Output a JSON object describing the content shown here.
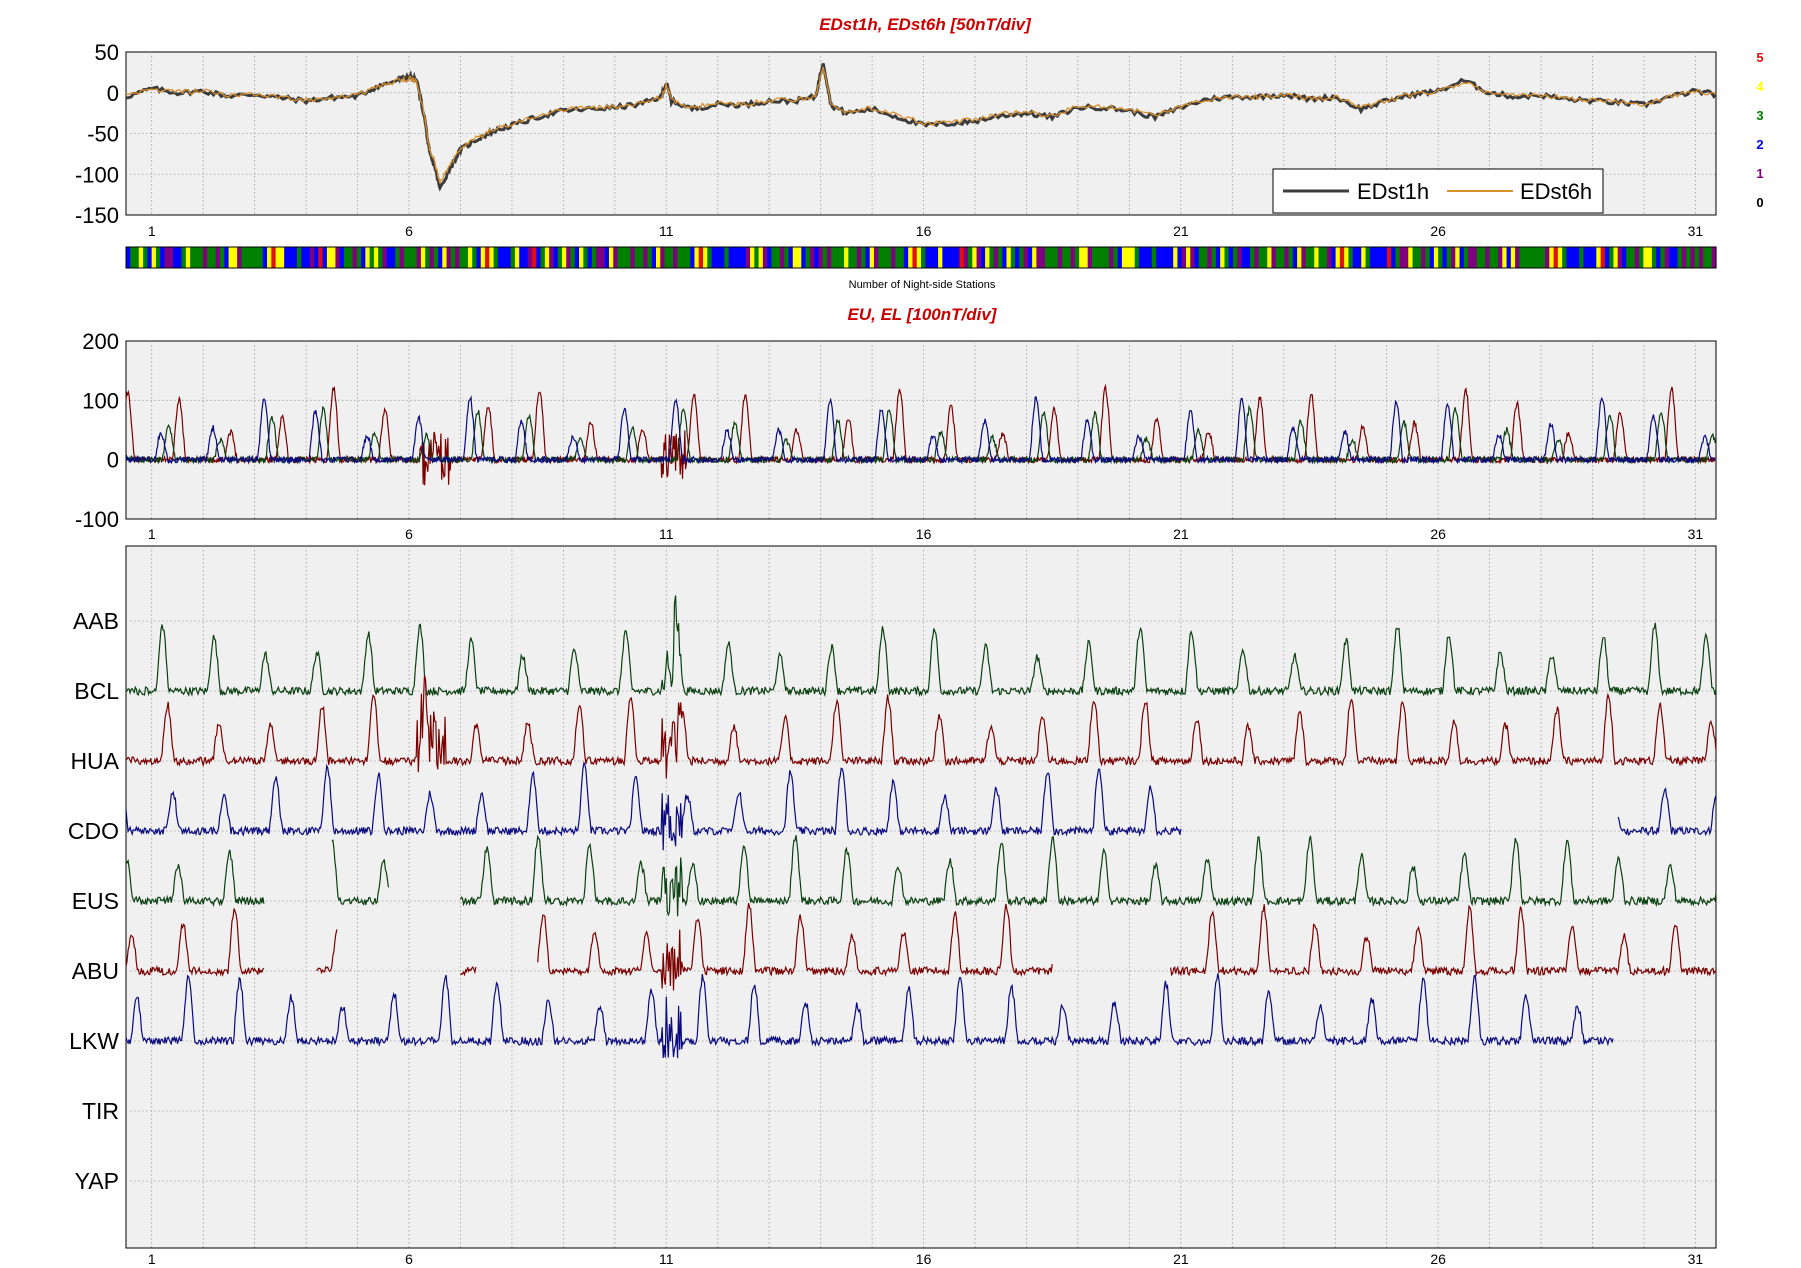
{
  "colors": {
    "panel_bg": "#f0f0f0",
    "grid": "#9a9a9a",
    "title": "#cc0000",
    "edst1h": "#3c3c3c",
    "edst6h": "#d8902e",
    "dark_red": "#7a0000",
    "dark_blue": "#0a0a80",
    "dark_green": "#0a4010"
  },
  "chart_data": [
    {
      "type": "line",
      "title": "EDst1h, EDst6h [50nT/div]",
      "x_ticks": [
        "1",
        "6",
        "11",
        "16",
        "21",
        "26",
        "31"
      ],
      "x_tick_values": [
        1,
        6,
        11,
        16,
        21,
        26,
        31
      ],
      "xlim": [
        0.5,
        31.4
      ],
      "ylim": [
        -150,
        50
      ],
      "y_ticks": [
        "50",
        "0",
        "-50",
        "-100",
        "-150"
      ],
      "y_tick_values": [
        50,
        0,
        -50,
        -100,
        -150
      ],
      "grid": true,
      "legend_placement": "bottom-right",
      "series": [
        {
          "name": "EDst1h",
          "color": "#3c3c3c",
          "points": [
            [
              0.5,
              -5
            ],
            [
              1,
              5
            ],
            [
              1.5,
              0
            ],
            [
              2,
              2
            ],
            [
              2.5,
              -4
            ],
            [
              3,
              -2
            ],
            [
              3.5,
              -6
            ],
            [
              4,
              -10
            ],
            [
              4.5,
              -6
            ],
            [
              5,
              -4
            ],
            [
              5.4,
              8
            ],
            [
              5.8,
              16
            ],
            [
              6,
              20
            ],
            [
              6.15,
              15
            ],
            [
              6.3,
              -30
            ],
            [
              6.4,
              -75
            ],
            [
              6.5,
              -90
            ],
            [
              6.6,
              -118
            ],
            [
              6.8,
              -92
            ],
            [
              7,
              -70
            ],
            [
              7.3,
              -58
            ],
            [
              7.6,
              -48
            ],
            [
              8,
              -40
            ],
            [
              8.5,
              -30
            ],
            [
              9,
              -22
            ],
            [
              9.5,
              -20
            ],
            [
              10,
              -18
            ],
            [
              10.5,
              -14
            ],
            [
              10.9,
              -5
            ],
            [
              11,
              12
            ],
            [
              11.1,
              -10
            ],
            [
              11.5,
              -20
            ],
            [
              12,
              -14
            ],
            [
              12.5,
              -15
            ],
            [
              13,
              -10
            ],
            [
              13.5,
              -10
            ],
            [
              13.9,
              -5
            ],
            [
              14.05,
              38
            ],
            [
              14.2,
              -15
            ],
            [
              14.5,
              -25
            ],
            [
              15,
              -20
            ],
            [
              15.5,
              -30
            ],
            [
              16,
              -40
            ],
            [
              16.5,
              -38
            ],
            [
              17,
              -35
            ],
            [
              17.5,
              -28
            ],
            [
              18,
              -25
            ],
            [
              18.5,
              -30
            ],
            [
              19,
              -18
            ],
            [
              19.5,
              -18
            ],
            [
              20,
              -22
            ],
            [
              20.5,
              -30
            ],
            [
              21,
              -18
            ],
            [
              21.5,
              -8
            ],
            [
              22,
              -5
            ],
            [
              22.5,
              -5
            ],
            [
              23,
              -2
            ],
            [
              23.5,
              -8
            ],
            [
              24,
              -5
            ],
            [
              24.5,
              -20
            ],
            [
              25,
              -10
            ],
            [
              25.5,
              -2
            ],
            [
              26,
              2
            ],
            [
              26.5,
              15
            ],
            [
              27,
              0
            ],
            [
              27.5,
              -5
            ],
            [
              28,
              -3
            ],
            [
              28.5,
              -8
            ],
            [
              29,
              -10
            ],
            [
              29.5,
              -12
            ],
            [
              30,
              -15
            ],
            [
              30.5,
              -5
            ],
            [
              31,
              2
            ],
            [
              31.4,
              -2
            ]
          ]
        },
        {
          "name": "EDst6h",
          "color": "#d8902e",
          "points": [
            [
              0.5,
              -4
            ],
            [
              1,
              4
            ],
            [
              1.5,
              1
            ],
            [
              2,
              2
            ],
            [
              2.5,
              -3
            ],
            [
              3,
              -2
            ],
            [
              3.5,
              -5
            ],
            [
              4,
              -9
            ],
            [
              4.5,
              -6
            ],
            [
              5,
              -3
            ],
            [
              5.4,
              8
            ],
            [
              5.8,
              15
            ],
            [
              6,
              18
            ],
            [
              6.15,
              14
            ],
            [
              6.3,
              -28
            ],
            [
              6.4,
              -70
            ],
            [
              6.5,
              -85
            ],
            [
              6.6,
              -110
            ],
            [
              6.8,
              -88
            ],
            [
              7,
              -68
            ],
            [
              7.3,
              -56
            ],
            [
              7.6,
              -46
            ],
            [
              8,
              -38
            ],
            [
              8.5,
              -29
            ],
            [
              9,
              -21
            ],
            [
              9.5,
              -19
            ],
            [
              10,
              -17
            ],
            [
              10.5,
              -13
            ],
            [
              10.9,
              -5
            ],
            [
              11,
              9
            ],
            [
              11.1,
              -9
            ],
            [
              11.5,
              -18
            ],
            [
              12,
              -13
            ],
            [
              12.5,
              -14
            ],
            [
              13,
              -9
            ],
            [
              13.5,
              -9
            ],
            [
              13.9,
              -4
            ],
            [
              14.05,
              30
            ],
            [
              14.2,
              -13
            ],
            [
              14.5,
              -23
            ],
            [
              15,
              -19
            ],
            [
              15.5,
              -28
            ],
            [
              16,
              -37
            ],
            [
              16.5,
              -36
            ],
            [
              17,
              -33
            ],
            [
              17.5,
              -26
            ],
            [
              18,
              -24
            ],
            [
              18.5,
              -28
            ],
            [
              19,
              -17
            ],
            [
              19.5,
              -17
            ],
            [
              20,
              -21
            ],
            [
              20.5,
              -28
            ],
            [
              21,
              -17
            ],
            [
              21.5,
              -8
            ],
            [
              22,
              -5
            ],
            [
              22.5,
              -5
            ],
            [
              23,
              -2
            ],
            [
              23.5,
              -7
            ],
            [
              24,
              -5
            ],
            [
              24.5,
              -18
            ],
            [
              25,
              -9
            ],
            [
              25.5,
              -2
            ],
            [
              26,
              2
            ],
            [
              26.5,
              13
            ],
            [
              27,
              0
            ],
            [
              27.5,
              -4
            ],
            [
              28,
              -3
            ],
            [
              28.5,
              -7
            ],
            [
              29,
              -9
            ],
            [
              29.5,
              -11
            ],
            [
              30,
              -14
            ],
            [
              30.5,
              -5
            ],
            [
              31,
              2
            ],
            [
              31.4,
              -2
            ]
          ]
        }
      ]
    },
    {
      "type": "heatmap",
      "xlabel": "Number of Night-side Stations",
      "xlim": [
        0.5,
        31.4
      ],
      "color_key": [
        {
          "label": "5",
          "color": "#e01010"
        },
        {
          "label": "4",
          "color": "#ffff00"
        },
        {
          "label": "3",
          "color": "#008000"
        },
        {
          "label": "2",
          "color": "#0000ff"
        },
        {
          "label": "1",
          "color": "#800080"
        },
        {
          "label": "0",
          "color": "#000000"
        }
      ],
      "counts_pattern": [
        2,
        3,
        3,
        4,
        5,
        2,
        2,
        3,
        3,
        1,
        3,
        2,
        4,
        3,
        3,
        2,
        3,
        2,
        3,
        3,
        1,
        1,
        2,
        3,
        3,
        4,
        2,
        3,
        3,
        2,
        2,
        1,
        1,
        2,
        3,
        3,
        2,
        4,
        3,
        2
      ]
    },
    {
      "type": "line",
      "title": "EU, EL   [100nT/div]",
      "x_ticks": [
        "1",
        "6",
        "11",
        "16",
        "21",
        "26",
        "31"
      ],
      "x_tick_values": [
        1,
        6,
        11,
        16,
        21,
        26,
        31
      ],
      "xlim": [
        0.5,
        31.4
      ],
      "ylim": [
        -100,
        200
      ],
      "y_ticks": [
        "200",
        "100",
        "0",
        "-100"
      ],
      "y_tick_values": [
        200,
        100,
        0,
        -100
      ],
      "grid": true,
      "series_style": [
        {
          "color": "#7a0000",
          "amplitude": 110,
          "phase": 0.35
        },
        {
          "color": "#0a4010",
          "amplitude": 80,
          "phase": 0.15
        },
        {
          "color": "#0a0a80",
          "amplitude": 95,
          "phase": 0.0
        }
      ]
    },
    {
      "type": "line",
      "station_labels": [
        "AAB",
        "BCL",
        "HUA",
        "CDO",
        "EUS",
        "ABU",
        "LKW",
        "TIR",
        "YAP"
      ],
      "x_ticks": [
        "1",
        "6",
        "11",
        "16",
        "21",
        "26",
        "31"
      ],
      "x_tick_values": [
        1,
        6,
        11,
        16,
        21,
        26,
        31
      ],
      "xlim": [
        0.5,
        31.4
      ],
      "grid": true,
      "stations": [
        {
          "name": "AAB",
          "color": "#0a4010",
          "segments": [
            [
              0.5,
              31.4
            ]
          ]
        },
        {
          "name": "BCL",
          "color": "#7a0000",
          "segments": [
            [
              0.5,
              31.4
            ]
          ]
        },
        {
          "name": "HUA",
          "color": "#0a0a80",
          "segments": [
            [
              0.5,
              21.0
            ],
            [
              29.5,
              31.4
            ]
          ]
        },
        {
          "name": "CDO",
          "color": "#0a4010",
          "segments": [
            [
              0.5,
              3.2
            ],
            [
              4.5,
              5.6
            ],
            [
              7.0,
              31.4
            ]
          ]
        },
        {
          "name": "EUS",
          "color": "#7a0000",
          "segments": [
            [
              0.5,
              3.2
            ],
            [
              4.2,
              4.6
            ],
            [
              7.0,
              7.3
            ],
            [
              8.5,
              18.5
            ],
            [
              20.8,
              31.4
            ]
          ]
        },
        {
          "name": "ABU",
          "color": "#0a0a80",
          "segments": [
            [
              0.5,
              29.4
            ]
          ]
        },
        {
          "name": "LKW",
          "color": "#000000",
          "segments": []
        },
        {
          "name": "TIR",
          "color": "#000000",
          "segments": []
        },
        {
          "name": "YAP",
          "color": "#000000",
          "segments": []
        }
      ]
    }
  ],
  "legend": {
    "entries": [
      {
        "label": "EDst1h",
        "color": "#3c3c3c"
      },
      {
        "label": "EDst6h",
        "color": "#d8902e"
      }
    ]
  }
}
